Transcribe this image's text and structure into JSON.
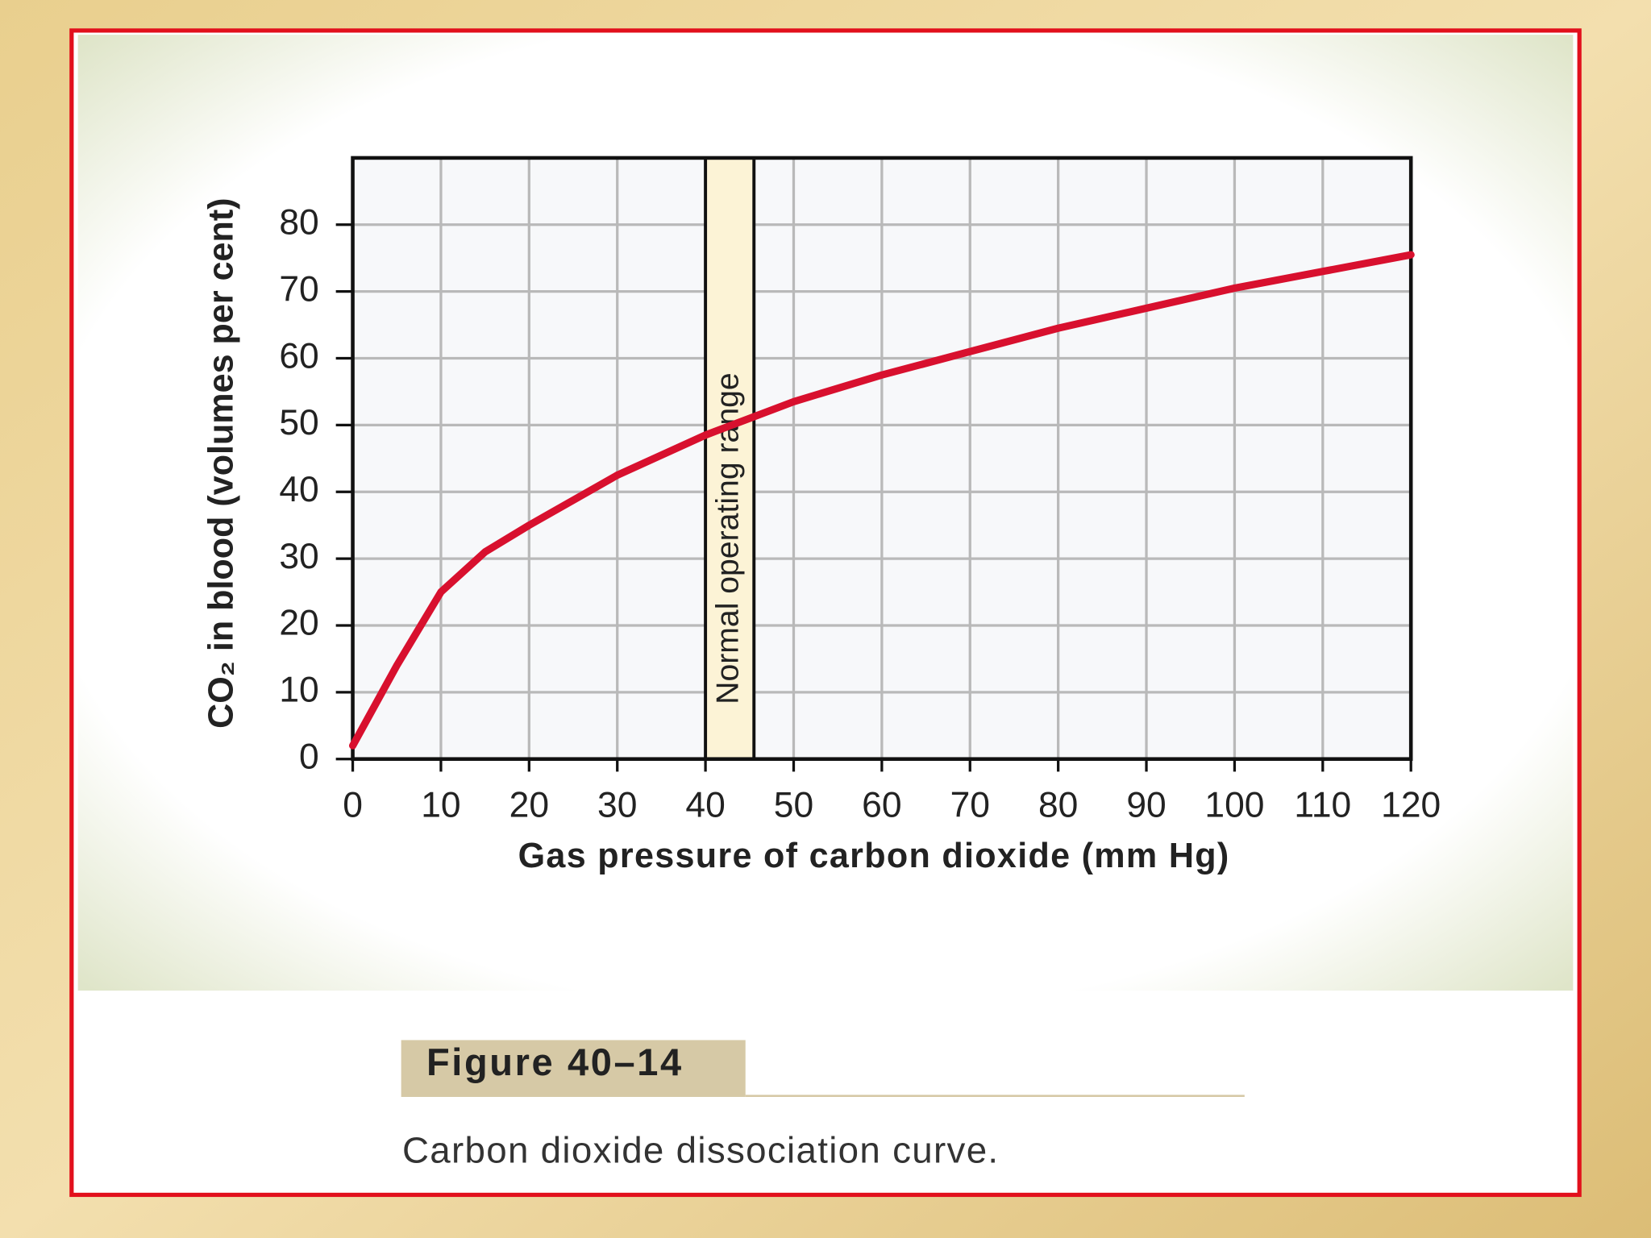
{
  "chart_data": {
    "type": "line",
    "y_label": "CO₂ in blood (volumes per cent)",
    "x_label": "Gas pressure of carbon dioxide (mm Hg)",
    "x": [
      0,
      5,
      10,
      15,
      20,
      30,
      40,
      50,
      60,
      70,
      80,
      90,
      100,
      110,
      120
    ],
    "values": [
      2,
      14,
      25,
      31,
      35,
      42.5,
      48.5,
      53.5,
      57.5,
      61,
      64.5,
      67.5,
      70.5,
      73,
      75.5
    ],
    "color": "#d8102e",
    "xlim": [
      0,
      120
    ],
    "xticks": [
      0,
      10,
      20,
      30,
      40,
      50,
      60,
      70,
      80,
      90,
      100,
      110,
      120
    ],
    "ylim": [
      0,
      90
    ],
    "yticks": [
      0,
      10,
      20,
      30,
      40,
      50,
      60,
      70,
      80
    ],
    "grid": true,
    "highlight": {
      "x": [
        40,
        45.5
      ],
      "label": "Normal operating range",
      "color": "#fcf3d6"
    }
  },
  "caption": {
    "figure": "Figure 40–14",
    "text": "Carbon dioxide dissociation curve."
  }
}
